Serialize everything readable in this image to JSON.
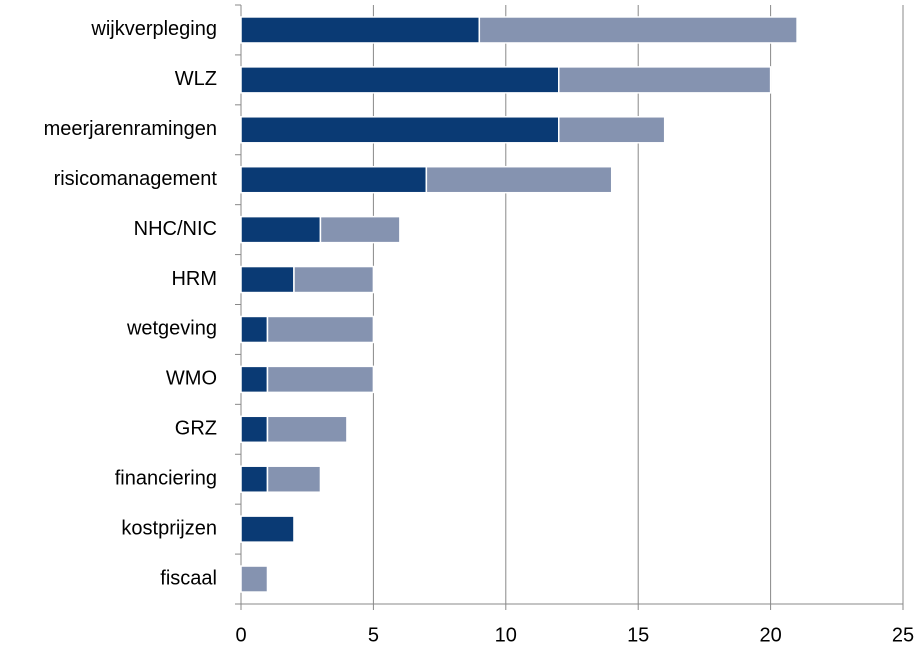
{
  "chart_data": {
    "type": "stacked-barh",
    "categories": [
      "wijkverpleging",
      "WLZ",
      "meerjarenramingen",
      "risicomanagement",
      "NHC/NIC",
      "HRM",
      "wetgeving",
      "WMO",
      "GRZ",
      "financiering",
      "kostprijzen",
      "fiscaal"
    ],
    "series": [
      {
        "color": "#0a3a74",
        "values": [
          9,
          12,
          12,
          7,
          3,
          2,
          1,
          1,
          1,
          1,
          2,
          0
        ]
      },
      {
        "color": "#8593b0",
        "values": [
          12,
          8,
          4,
          7,
          3,
          3,
          4,
          4,
          3,
          2,
          0,
          1
        ]
      }
    ],
    "xlim": [
      0,
      25
    ],
    "xticks": [
      0,
      5,
      10,
      15,
      20,
      25
    ],
    "grid": true
  }
}
